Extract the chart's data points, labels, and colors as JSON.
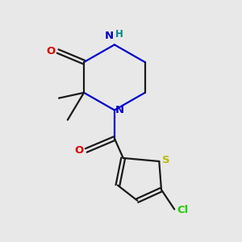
{
  "bg_color": "#e8e8e8",
  "bond_color": "#1a1a1a",
  "n_color": "#0000cc",
  "o_color": "#dd0000",
  "s_color": "#bbbb00",
  "cl_color": "#22cc00",
  "h_color": "#008888",
  "lw": 1.6,
  "xlim": [
    0,
    10
  ],
  "ylim": [
    0,
    11
  ]
}
